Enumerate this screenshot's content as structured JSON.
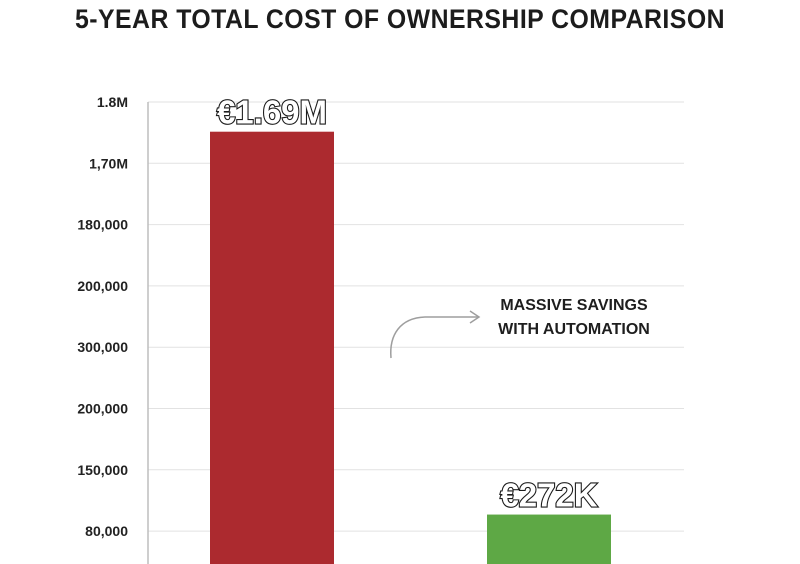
{
  "chart_data": {
    "type": "bar",
    "title": "5-YEAR TOTAL COST OF OWNERSHIP COMPARISON",
    "xlabel": "",
    "ylabel": "",
    "y_tick_labels": [
      "1.8M",
      "1,70M",
      "180,000",
      "200,000",
      "300,000",
      "200,000",
      "150,000",
      "80,000"
    ],
    "categories": [
      "",
      ""
    ],
    "values": [
      1690000,
      272000
    ],
    "data_labels": [
      "€1.69M",
      "€272K"
    ],
    "bar_colors": [
      "#ac2a2f",
      "#5ea845"
    ],
    "ylim": [
      0,
      1800000
    ],
    "grid": true,
    "annotation": [
      "MASSIVE SAVINGS",
      "WITH AUTOMATION"
    ]
  },
  "colors": {
    "grid": "#e2e2e2",
    "axis": "#bdbdbd",
    "arrow": "#9e9e9e"
  }
}
